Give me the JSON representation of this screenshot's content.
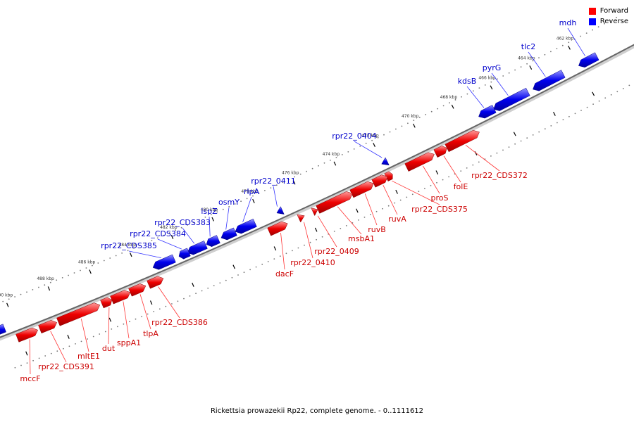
{
  "legend": {
    "forward": {
      "label": "Forward",
      "color": "#ff0000"
    },
    "reverse": {
      "label": "Reverse",
      "color": "#0000ff"
    }
  },
  "caption": "Rickettsia prowazekii Rp22, complete genome. - 0..1111612",
  "scale": {
    "ticks": [
      "462 kbp",
      "464 kbp",
      "466 kbp",
      "468 kbp",
      "470 kbp",
      "472 kbp",
      "474 kbp",
      "476 kbp",
      "478 kbp",
      "480 kbp",
      "482 kbp",
      "484 kbp",
      "486 kbp",
      "488 kbp",
      "490 kbp"
    ]
  },
  "genes": {
    "reverse": [
      {
        "name": "mdh"
      },
      {
        "name": "tlc2"
      },
      {
        "name": "pyrG"
      },
      {
        "name": "kdsB"
      },
      {
        "name": "rpr22_0404"
      },
      {
        "name": "rpr22_0411"
      },
      {
        "name": "rlpA"
      },
      {
        "name": "osmY"
      },
      {
        "name": "ispZ"
      },
      {
        "name": "rpr22_CDS383"
      },
      {
        "name": "rpr22_CDS384"
      },
      {
        "name": "rpr22_CDS385"
      }
    ],
    "forward": [
      {
        "name": "rpr22_CDS372"
      },
      {
        "name": "folE"
      },
      {
        "name": "proS"
      },
      {
        "name": "rpr22_CDS375"
      },
      {
        "name": "ruvA"
      },
      {
        "name": "ruvB"
      },
      {
        "name": "msbA1"
      },
      {
        "name": "rpr22_0409"
      },
      {
        "name": "rpr22_0410"
      },
      {
        "name": "dacF"
      },
      {
        "name": "rpr22_CDS386"
      },
      {
        "name": "tlpA"
      },
      {
        "name": "sppA1"
      },
      {
        "name": "dut"
      },
      {
        "name": "mltE1"
      },
      {
        "name": "rpr22_CDS391"
      },
      {
        "name": "mccF"
      }
    ]
  }
}
